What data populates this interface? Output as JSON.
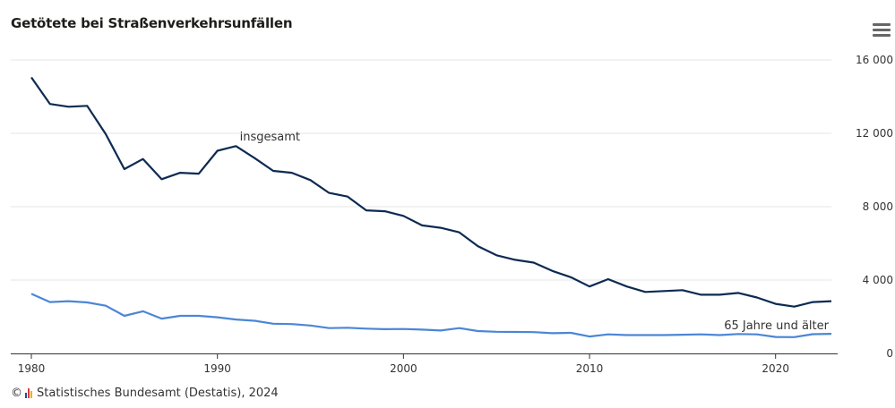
{
  "chart_data": {
    "type": "line",
    "title": "Getötete bei Straßenverkehrsunfällen",
    "x": [
      1980,
      1981,
      1982,
      1983,
      1984,
      1985,
      1986,
      1987,
      1988,
      1989,
      1990,
      1991,
      1992,
      1993,
      1994,
      1995,
      1996,
      1997,
      1998,
      1999,
      2000,
      2001,
      2002,
      2003,
      2004,
      2005,
      2006,
      2007,
      2008,
      2009,
      2010,
      2011,
      2012,
      2013,
      2014,
      2015,
      2016,
      2017,
      2018,
      2019,
      2020,
      2021,
      2022,
      2023
    ],
    "series": [
      {
        "name": "insgesamt",
        "color": "#0d2a52",
        "values": [
          15050,
          13600,
          13450,
          13500,
          11950,
          10050,
          10600,
          9500,
          9850,
          9800,
          11050,
          11300,
          10650,
          9950,
          9850,
          9450,
          8750,
          8550,
          7800,
          7750,
          7500,
          6980,
          6850,
          6600,
          5850,
          5350,
          5100,
          4950,
          4500,
          4150,
          3650,
          4050,
          3650,
          3350,
          3400,
          3450,
          3200,
          3200,
          3300,
          3050,
          2700,
          2550,
          2800,
          2850
        ]
      },
      {
        "name": "65 Jahre und älter",
        "color": "#4b86d6",
        "values": [
          3250,
          2800,
          2850,
          2780,
          2600,
          2050,
          2300,
          1900,
          2050,
          2050,
          1970,
          1850,
          1780,
          1620,
          1600,
          1520,
          1380,
          1400,
          1350,
          1320,
          1330,
          1300,
          1250,
          1380,
          1220,
          1180,
          1170,
          1160,
          1100,
          1120,
          920,
          1040,
          1000,
          1000,
          1000,
          1020,
          1040,
          1000,
          1060,
          1040,
          900,
          890,
          1050,
          1070
        ]
      }
    ],
    "x_ticks": [
      "1980",
      "1990",
      "2000",
      "2010",
      "2020"
    ],
    "y_ticks": [
      "0",
      "4 000",
      "8 000",
      "12 000",
      "16 000"
    ],
    "xlim": [
      1980,
      2023
    ],
    "ylim": [
      0,
      16000
    ],
    "grid": true,
    "yaxis_position": "right"
  },
  "footer": {
    "copyright": "©",
    "source": "Statistisches Bundesamt (Destatis), 2024"
  }
}
